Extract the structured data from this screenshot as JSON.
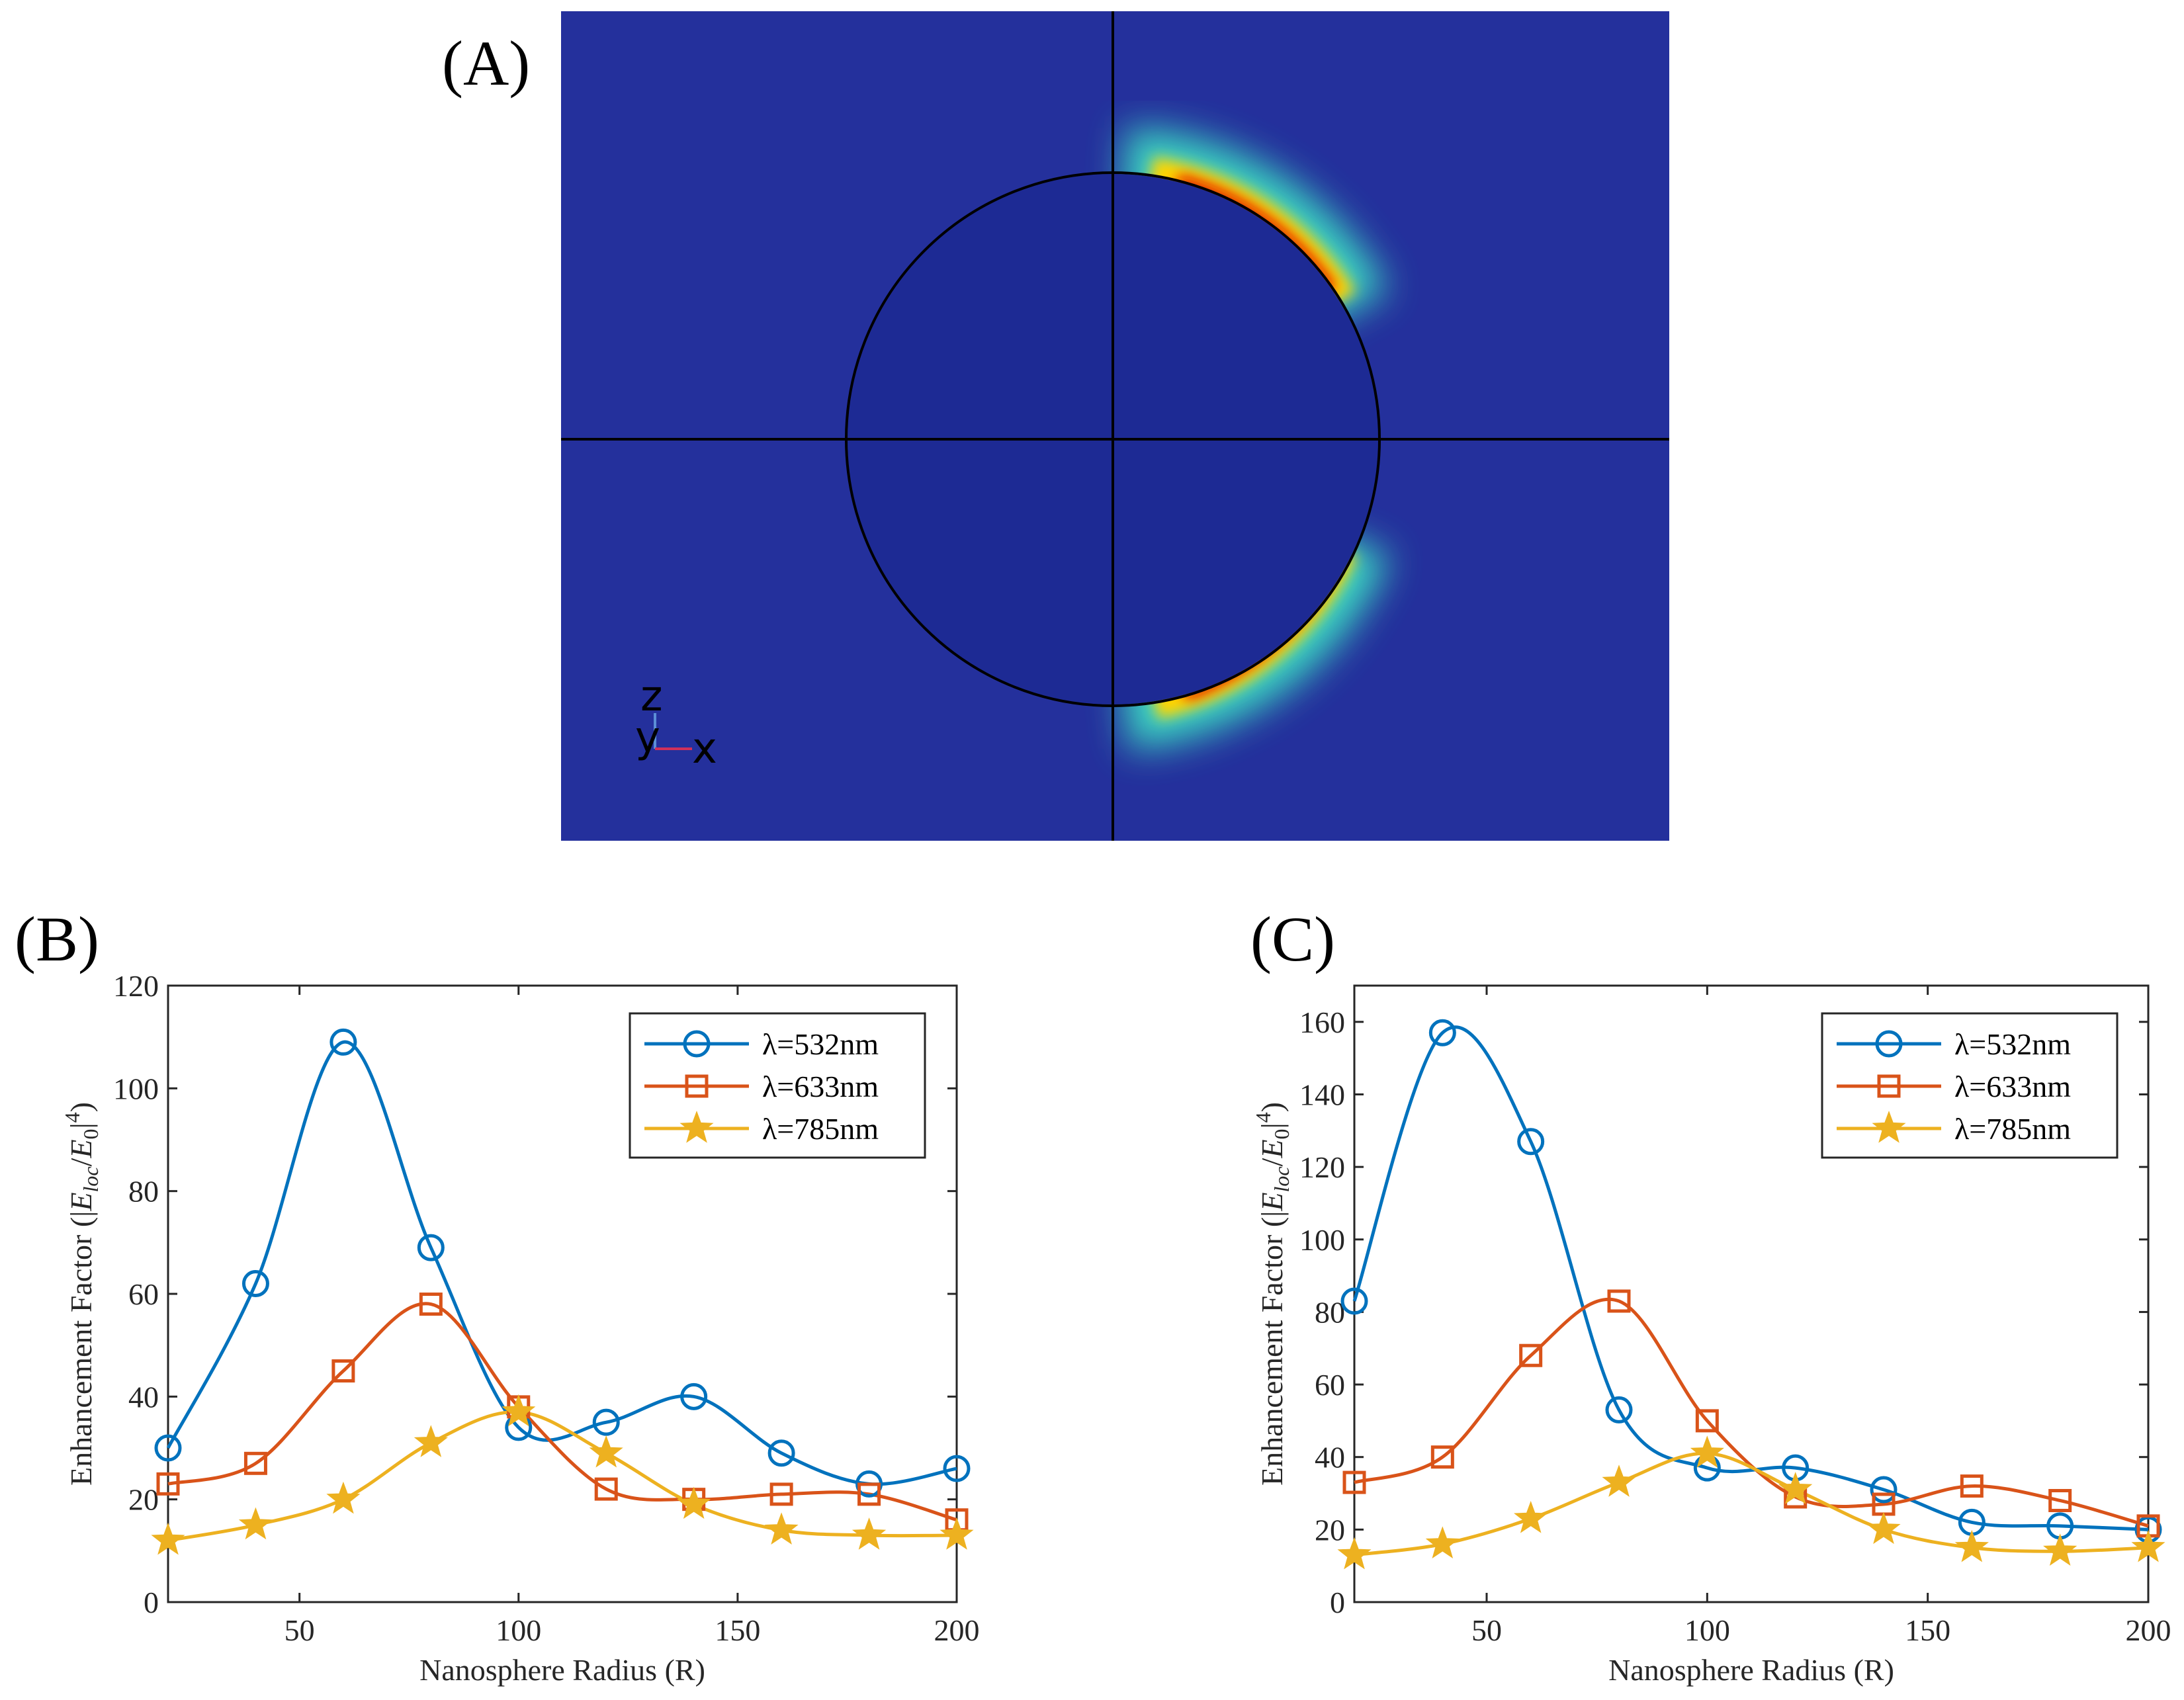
{
  "panel_a": {
    "label": "(A)",
    "triad": {
      "z": "z",
      "y": "y",
      "x": "x"
    }
  },
  "chart_data": [
    {
      "panel": "(B)",
      "type": "line",
      "title": "",
      "xlabel": "Nanosphere Radius (R)",
      "ylabel_main": "Enhancement Factor ",
      "ylabel_formula": {
        "open": "(|",
        "E1": "E",
        "sub1": "loc",
        "slash": "/",
        "E2": "E",
        "sub2": "0",
        "close": "|",
        "exp": "4",
        "end": ")"
      },
      "xlim": [
        20,
        200
      ],
      "ylim": [
        0,
        120
      ],
      "xticks": [
        50,
        100,
        150,
        200
      ],
      "yticks": [
        0,
        20,
        40,
        60,
        80,
        100,
        120
      ],
      "legend_position": "top-right",
      "x": [
        20,
        40,
        60,
        80,
        100,
        120,
        140,
        160,
        180,
        200
      ],
      "series": [
        {
          "name": "λ=532nm",
          "color": "#0072BD",
          "marker": "circle",
          "values": [
            30,
            62,
            109,
            69,
            34,
            35,
            40,
            29,
            23,
            26
          ]
        },
        {
          "name": "λ=633nm",
          "color": "#D95319",
          "marker": "square",
          "values": [
            23,
            27,
            45,
            58,
            38,
            22,
            20,
            21,
            21,
            16
          ]
        },
        {
          "name": "λ=785nm",
          "color": "#EDB120",
          "marker": "star",
          "values": [
            12,
            15,
            20,
            31,
            37,
            29,
            19,
            14,
            13,
            13
          ]
        }
      ]
    },
    {
      "panel": "(C)",
      "type": "line",
      "title": "",
      "xlabel": "Nanosphere Radius (R)",
      "ylabel_main": "Enhancement Factor ",
      "ylabel_formula": {
        "open": "(|",
        "E1": "E",
        "sub1": "loc",
        "slash": "/",
        "E2": "E",
        "sub2": "0",
        "close": "|",
        "exp": "4",
        "end": ")"
      },
      "xlim": [
        20,
        200
      ],
      "ylim": [
        0,
        170
      ],
      "xticks": [
        50,
        100,
        150,
        200
      ],
      "yticks": [
        0,
        20,
        40,
        60,
        80,
        100,
        120,
        140,
        160
      ],
      "legend_position": "top-right",
      "x": [
        20,
        40,
        60,
        80,
        100,
        120,
        140,
        160,
        180,
        200
      ],
      "series": [
        {
          "name": "λ=532nm",
          "color": "#0072BD",
          "marker": "circle",
          "values": [
            83,
            157,
            127,
            53,
            37,
            37,
            31,
            22,
            21,
            20
          ]
        },
        {
          "name": "λ=633nm",
          "color": "#D95319",
          "marker": "square",
          "values": [
            33,
            40,
            68,
            83,
            50,
            29,
            27,
            32,
            28,
            21
          ]
        },
        {
          "name": "λ=785nm",
          "color": "#EDB120",
          "marker": "star",
          "values": [
            13,
            16,
            23,
            33,
            41,
            31,
            20,
            15,
            14,
            15
          ]
        }
      ]
    }
  ]
}
